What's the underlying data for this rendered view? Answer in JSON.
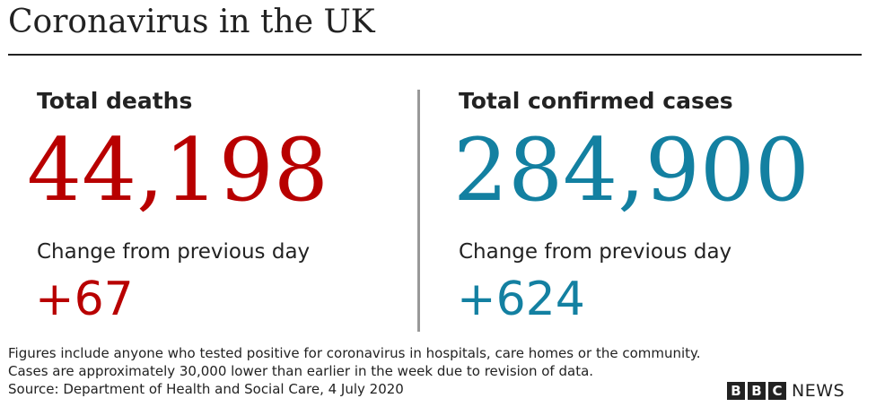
{
  "header": {
    "title": "Coronavirus in the UK"
  },
  "colors": {
    "deaths": "#b80000",
    "cases": "#1380a1",
    "text": "#222222",
    "divider": "#999999"
  },
  "chart_data": {
    "type": "table",
    "title": "Coronavirus in the UK",
    "stats": [
      {
        "label": "Total deaths",
        "value": "44,198",
        "change_label": "Change from previous day",
        "change": "+67"
      },
      {
        "label": "Total confirmed cases",
        "value": "284,900",
        "change_label": "Change from previous day",
        "change": "+624"
      }
    ]
  },
  "footer": {
    "notes": [
      "Figures include anyone who tested positive for coronavirus in hospitals, care homes or the community.",
      "Cases are approximately 30,000 lower than earlier in the week due to revision of data.",
      "Source: Department of Health and Social Care, 4 July 2020"
    ],
    "logo": {
      "letters": [
        "B",
        "B",
        "C"
      ],
      "word": "NEWS"
    }
  }
}
